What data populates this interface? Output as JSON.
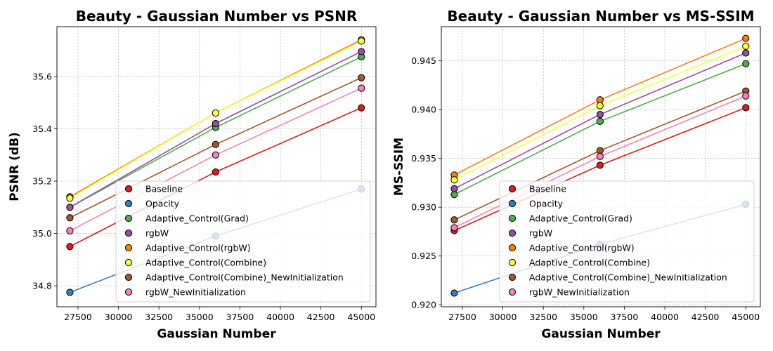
{
  "chart_data": [
    {
      "type": "scatter",
      "title": "Beauty - Gaussian Number vs PSNR",
      "xlabel": "Gaussian Number",
      "ylabel": "PSNR (dB)",
      "xlim": [
        26200,
        45900
      ],
      "ylim": [
        34.72,
        35.79
      ],
      "xticks": [
        27500,
        30000,
        32500,
        35000,
        37500,
        40000,
        42500,
        45000
      ],
      "yticks": [
        34.8,
        35.0,
        35.2,
        35.4,
        35.6
      ],
      "ytick_decimals": 1,
      "grid": true,
      "legend_position": "lower-right",
      "x": [
        27000,
        36000,
        45000
      ],
      "series": [
        {
          "name": "Baseline",
          "color": "#e41a1c",
          "values": [
            34.95,
            35.235,
            35.48
          ]
        },
        {
          "name": "Opacity",
          "color": "#377eb8",
          "values": [
            34.775,
            34.99,
            35.17
          ]
        },
        {
          "name": "Adaptive_Control(Grad)",
          "color": "#4daf4a",
          "values": [
            35.1,
            35.405,
            35.675
          ]
        },
        {
          "name": "rgbW",
          "color": "#984ea3",
          "values": [
            35.1,
            35.42,
            35.695
          ]
        },
        {
          "name": "Adaptive_Control(rgbW)",
          "color": "#ff7f00",
          "values": [
            35.14,
            35.46,
            35.74
          ]
        },
        {
          "name": "Adaptive_Control(Combine)",
          "color": "#ffff33",
          "values": [
            35.135,
            35.46,
            35.735
          ]
        },
        {
          "name": "Adaptive_Control(Combine)_NewInitialization",
          "color": "#a65628",
          "values": [
            35.06,
            35.34,
            35.595
          ]
        },
        {
          "name": "rgbW_NewInitialization",
          "color": "#f781bf",
          "values": [
            35.01,
            35.3,
            35.555
          ]
        }
      ]
    },
    {
      "type": "scatter",
      "title": "Beauty - Gaussian Number vs MS-SSIM",
      "xlabel": "Gaussian Number",
      "ylabel": "MS-SSIM",
      "xlim": [
        26200,
        45900
      ],
      "ylim": [
        0.9198,
        0.9485
      ],
      "xticks": [
        27500,
        30000,
        32500,
        35000,
        37500,
        40000,
        42500,
        45000
      ],
      "yticks": [
        0.92,
        0.925,
        0.93,
        0.935,
        0.94,
        0.945
      ],
      "ytick_decimals": 3,
      "grid": true,
      "legend_position": "lower-right",
      "x": [
        27000,
        36000,
        45000
      ],
      "series": [
        {
          "name": "Baseline",
          "color": "#e41a1c",
          "values": [
            0.9276,
            0.9343,
            0.9402
          ]
        },
        {
          "name": "Opacity",
          "color": "#377eb8",
          "values": [
            0.9212,
            0.9262,
            0.9303
          ]
        },
        {
          "name": "Adaptive_Control(Grad)",
          "color": "#4daf4a",
          "values": [
            0.9313,
            0.9388,
            0.9447
          ]
        },
        {
          "name": "rgbW",
          "color": "#984ea3",
          "values": [
            0.9319,
            0.9395,
            0.9458
          ]
        },
        {
          "name": "Adaptive_Control(rgbW)",
          "color": "#ff7f00",
          "values": [
            0.9333,
            0.941,
            0.9473
          ]
        },
        {
          "name": "Adaptive_Control(Combine)",
          "color": "#ffff33",
          "values": [
            0.9328,
            0.9404,
            0.9465
          ]
        },
        {
          "name": "Adaptive_Control(Combine)_NewInitialization",
          "color": "#a65628",
          "values": [
            0.9287,
            0.9358,
            0.9419
          ]
        },
        {
          "name": "rgbW_NewInitialization",
          "color": "#f781bf",
          "values": [
            0.9279,
            0.9352,
            0.9414
          ]
        }
      ]
    }
  ]
}
